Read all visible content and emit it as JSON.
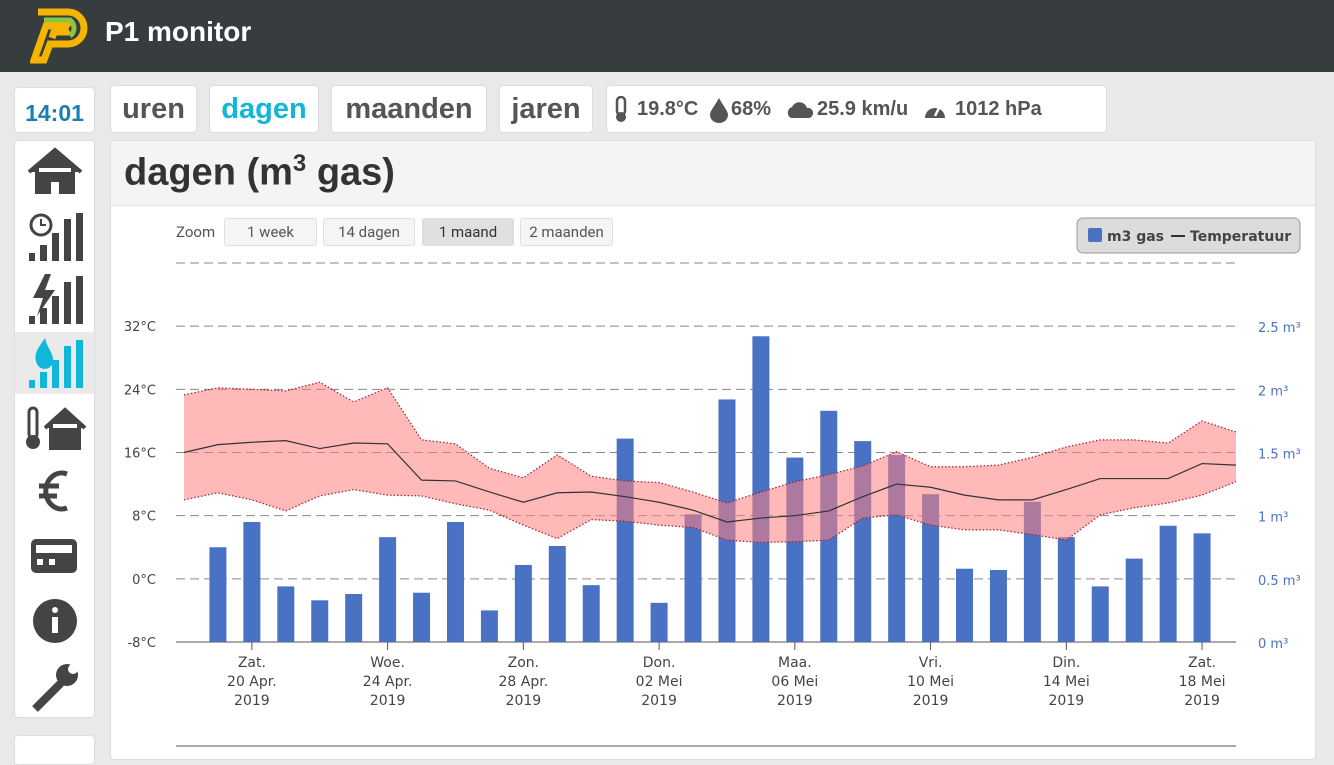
{
  "header": {
    "title": "P1 monitor"
  },
  "clock": "14:01",
  "tabs": {
    "items": [
      "uren",
      "dagen",
      "maanden",
      "jaren"
    ],
    "active": 1
  },
  "weather": {
    "temperature": "19.8°C",
    "humidity": "68%",
    "wind": "25.9 km/u",
    "pressure": "1012 hPa"
  },
  "panel": {
    "title": [
      "dagen (m",
      "3",
      " gas)"
    ]
  },
  "zoom": {
    "label": "Zoom",
    "options": [
      "1 week",
      "14 dagen",
      "1 maand",
      "2 maanden"
    ],
    "active": 2
  },
  "chart_data": {
    "type": "bar",
    "x": [
      "2019-04-18",
      "2019-04-19",
      "2019-04-20",
      "2019-04-21",
      "2019-04-22",
      "2019-04-23",
      "2019-04-24",
      "2019-04-25",
      "2019-04-26",
      "2019-04-27",
      "2019-04-28",
      "2019-04-29",
      "2019-04-30",
      "2019-05-01",
      "2019-05-02",
      "2019-05-03",
      "2019-05-04",
      "2019-05-05",
      "2019-05-06",
      "2019-05-07",
      "2019-05-08",
      "2019-05-09",
      "2019-05-10",
      "2019-05-11",
      "2019-05-12",
      "2019-05-13",
      "2019-05-14",
      "2019-05-15",
      "2019-05-16",
      "2019-05-17",
      "2019-05-18",
      "2019-05-19"
    ],
    "xlim": [
      "2019-04-18",
      "2019-05-19"
    ],
    "xticks": [
      {
        "value": "2019-04-20",
        "label": [
          "Zat.",
          "20 Apr.",
          "2019"
        ]
      },
      {
        "value": "2019-04-24",
        "label": [
          "Woe.",
          "24 Apr.",
          "2019"
        ]
      },
      {
        "value": "2019-04-28",
        "label": [
          "Zon.",
          "28 Apr.",
          "2019"
        ]
      },
      {
        "value": "2019-05-02",
        "label": [
          "Don.",
          "02 Mei",
          "2019"
        ]
      },
      {
        "value": "2019-05-06",
        "label": [
          "Maa.",
          "06 Mei",
          "2019"
        ]
      },
      {
        "value": "2019-05-10",
        "label": [
          "Vri.",
          "10 Mei",
          "2019"
        ]
      },
      {
        "value": "2019-05-14",
        "label": [
          "Din.",
          "14 Mei",
          "2019"
        ]
      },
      {
        "value": "2019-05-18",
        "label": [
          "Zat.",
          "18 Mei",
          "2019"
        ]
      }
    ],
    "ylim": [
      -8,
      40
    ],
    "yticks": [
      {
        "value": -8,
        "label": "-8°C"
      },
      {
        "value": 0,
        "label": "0°C"
      },
      {
        "value": 8,
        "label": "8°C"
      },
      {
        "value": 16,
        "label": "16°C"
      },
      {
        "value": 24,
        "label": "24°C"
      },
      {
        "value": 32,
        "label": "32°C"
      }
    ],
    "y2lim": [
      0,
      3
    ],
    "y2ticks": [
      {
        "value": 0,
        "label": "0 m³"
      },
      {
        "value": 0.5,
        "label": "0.5 m³"
      },
      {
        "value": 1,
        "label": "1 m³"
      },
      {
        "value": 1.5,
        "label": "1.5 m³"
      },
      {
        "value": 2,
        "label": "2 m³"
      },
      {
        "value": 2.5,
        "label": "2.5 m³"
      }
    ],
    "grid": true,
    "legend": "top-right",
    "series": [
      {
        "name": "m3 gas",
        "type": "bar",
        "axis": "y2",
        "color": "#4a72c4",
        "x": [
          "2019-04-19",
          "2019-04-20",
          "2019-04-21",
          "2019-04-22",
          "2019-04-23",
          "2019-04-24",
          "2019-04-25",
          "2019-04-26",
          "2019-04-27",
          "2019-04-28",
          "2019-04-29",
          "2019-04-30",
          "2019-05-01",
          "2019-05-02",
          "2019-05-03",
          "2019-05-04",
          "2019-05-05",
          "2019-05-06",
          "2019-05-07",
          "2019-05-08",
          "2019-05-09",
          "2019-05-10",
          "2019-05-11",
          "2019-05-12",
          "2019-05-13",
          "2019-05-14",
          "2019-05-15",
          "2019-05-16",
          "2019-05-17",
          "2019-05-18"
        ],
        "values": [
          0.75,
          0.95,
          0.44,
          0.33,
          0.38,
          0.83,
          0.39,
          0.95,
          0.25,
          0.61,
          0.76,
          0.45,
          1.61,
          0.31,
          1.01,
          1.92,
          2.42,
          1.46,
          1.83,
          1.59,
          1.48,
          1.17,
          0.58,
          0.57,
          1.11,
          0.83,
          0.44,
          0.66,
          0.92,
          0.86
        ]
      },
      {
        "name": "Temperatuur",
        "type": "line",
        "axis": "y",
        "color": "#333333",
        "values": [
          16,
          17,
          17.3,
          17.5,
          16.5,
          17.2,
          17.1,
          12.5,
          12.4,
          11,
          9.7,
          10.9,
          11,
          10.4,
          9.7,
          8.7,
          7.2,
          7.7,
          8,
          8.6,
          10.4,
          12,
          11.6,
          10.6,
          10,
          10,
          11.3,
          12.7,
          12.7,
          12.7,
          14.6,
          14.4
        ]
      }
    ],
    "temperature_range": {
      "color": "#ff8080",
      "low": [
        10,
        10.9,
        10,
        8.6,
        10.5,
        11.3,
        10.6,
        10.5,
        9.5,
        8.7,
        6.8,
        5.1,
        7.5,
        7.3,
        6.8,
        6.5,
        4.9,
        4.6,
        4.7,
        4.9,
        7.7,
        8.1,
        6.8,
        6.2,
        6.2,
        5.6,
        4.9,
        8.1,
        9,
        9.6,
        10.6,
        12.3
      ],
      "high": [
        23.3,
        24.2,
        24,
        23.8,
        24.9,
        22.4,
        24.2,
        17.6,
        17.1,
        14,
        12.8,
        15.7,
        13,
        12.4,
        12.2,
        11,
        9.6,
        11,
        12.3,
        13.2,
        14.3,
        16.1,
        14.2,
        14.2,
        14.4,
        15.4,
        16.7,
        17.6,
        17.6,
        17.2,
        20,
        18.6
      ]
    }
  }
}
